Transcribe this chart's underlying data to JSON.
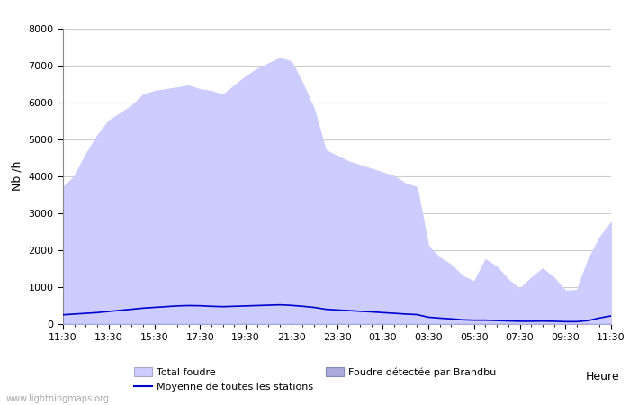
{
  "ylabel": "Nb /h",
  "xlabel_right": "Heure",
  "watermark": "www.lightningmaps.org",
  "ylim": [
    0,
    8000
  ],
  "yticks": [
    0,
    1000,
    2000,
    3000,
    4000,
    5000,
    6000,
    7000,
    8000
  ],
  "xtick_labels": [
    "11:30",
    "13:30",
    "15:30",
    "17:30",
    "19:30",
    "21:30",
    "23:30",
    "01:30",
    "03:30",
    "05:30",
    "07:30",
    "09:30",
    "11:30"
  ],
  "background_color": "#ffffff",
  "plot_bg_color": "#ffffff",
  "grid_color": "#cccccc",
  "fill_total_color": "#ccccff",
  "fill_local_color": "#aaaadd",
  "line_color": "#0000cc",
  "title_fontsize": 10,
  "time_points": [
    0,
    1,
    2,
    3,
    4,
    5,
    6,
    7,
    8,
    9,
    10,
    11,
    12,
    13,
    14,
    15,
    16,
    17,
    18,
    19,
    20,
    21,
    22,
    23,
    24,
    25,
    26,
    27,
    28,
    29,
    30,
    31,
    32,
    33,
    34,
    35,
    36,
    37,
    38,
    39,
    40,
    41,
    42,
    43,
    44,
    45,
    46,
    47,
    48
  ],
  "total_foudre": [
    3700,
    4000,
    4600,
    5100,
    5500,
    5700,
    5900,
    6200,
    6300,
    6350,
    6400,
    6450,
    6350,
    6300,
    6200,
    6450,
    6700,
    6900,
    7050,
    7200,
    7100,
    6500,
    5800,
    4700,
    4550,
    4400,
    4300,
    4200,
    4100,
    4000,
    3800,
    3700,
    2100,
    1800,
    1600,
    1300,
    1150,
    1750,
    1550,
    1200,
    950,
    1250,
    1500,
    1250,
    900,
    920,
    1750,
    2350,
    2750
  ],
  "local_foudre": [
    0,
    0,
    0,
    0,
    0,
    0,
    0,
    0,
    0,
    0,
    0,
    0,
    0,
    0,
    0,
    0,
    0,
    0,
    0,
    0,
    0,
    0,
    0,
    0,
    0,
    0,
    0,
    0,
    0,
    0,
    0,
    0,
    0,
    0,
    0,
    0,
    0,
    0,
    0,
    0,
    0,
    0,
    0,
    0,
    0,
    0,
    0,
    0,
    0
  ],
  "moyenne": [
    250,
    270,
    290,
    310,
    340,
    370,
    400,
    430,
    450,
    470,
    490,
    500,
    495,
    480,
    470,
    480,
    490,
    500,
    510,
    520,
    505,
    480,
    450,
    400,
    380,
    365,
    345,
    330,
    310,
    290,
    270,
    255,
    185,
    160,
    140,
    115,
    105,
    105,
    95,
    85,
    75,
    75,
    80,
    75,
    65,
    65,
    95,
    165,
    220
  ]
}
